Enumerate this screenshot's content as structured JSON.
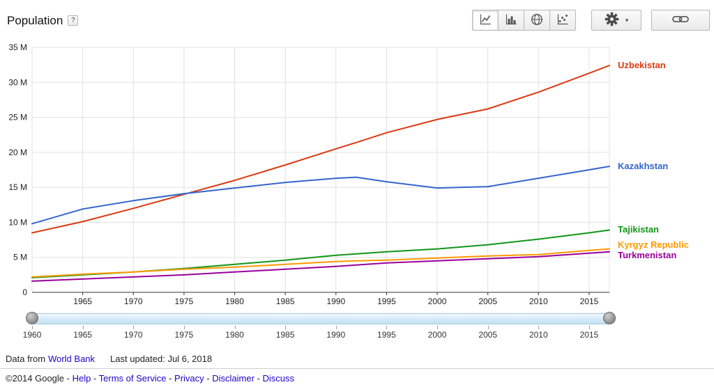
{
  "header": {
    "title": "Population",
    "help_label": "?",
    "toolbar": {
      "chart_types": [
        {
          "id": "line",
          "selected": true
        },
        {
          "id": "bar",
          "selected": false
        },
        {
          "id": "map",
          "selected": false
        },
        {
          "id": "scatter",
          "selected": false
        }
      ],
      "settings_caret": "▾"
    }
  },
  "chart_data": {
    "type": "line",
    "title": "Population",
    "x": [
      1960,
      1965,
      1970,
      1975,
      1980,
      1985,
      1990,
      1992,
      1995,
      2000,
      2005,
      2010,
      2015,
      2017
    ],
    "series": [
      {
        "name": "Uzbekistan",
        "color": "#dc3912",
        "values": [
          8.5,
          10.1,
          12.0,
          14.0,
          16.0,
          18.2,
          20.5,
          21.4,
          22.8,
          24.7,
          26.2,
          28.6,
          31.3,
          32.4
        ]
      },
      {
        "name": "Kazakhstan",
        "color": "#3366cc",
        "values": [
          9.8,
          11.9,
          13.1,
          14.1,
          14.9,
          15.7,
          16.3,
          16.45,
          15.8,
          14.9,
          15.1,
          16.3,
          17.5,
          18.0
        ]
      },
      {
        "name": "Tajikistan",
        "color": "#109618",
        "values": [
          2.1,
          2.5,
          2.9,
          3.4,
          4.0,
          4.6,
          5.3,
          5.5,
          5.8,
          6.2,
          6.8,
          7.6,
          8.5,
          8.9
        ]
      },
      {
        "name": "Kyrgyz Republic",
        "color": "#ff9900",
        "values": [
          2.2,
          2.6,
          2.9,
          3.3,
          3.6,
          4.0,
          4.4,
          4.5,
          4.6,
          4.9,
          5.2,
          5.4,
          6.0,
          6.2
        ]
      },
      {
        "name": "Turkmenistan",
        "color": "#990099",
        "values": [
          1.6,
          1.9,
          2.2,
          2.5,
          2.9,
          3.3,
          3.7,
          3.9,
          4.2,
          4.5,
          4.8,
          5.1,
          5.6,
          5.8
        ]
      }
    ],
    "xlim": [
      1960,
      2017
    ],
    "ylim": [
      0,
      35
    ],
    "y_ticks": [
      0,
      5,
      10,
      15,
      20,
      25,
      30,
      35
    ],
    "y_tick_labels": [
      "0",
      "5 M",
      "10 M",
      "15 M",
      "20 M",
      "25 M",
      "30 M",
      "35 M"
    ],
    "x_ticks": [
      1965,
      1970,
      1975,
      1980,
      1985,
      1990,
      1995,
      2000,
      2005,
      2010,
      2015
    ],
    "grid": true,
    "legend_position": "right"
  },
  "slider": {
    "ticks": [
      1960,
      1965,
      1970,
      1975,
      1980,
      1985,
      1990,
      1995,
      2000,
      2005,
      2010,
      2015
    ]
  },
  "source": {
    "prefix": "Data from",
    "link": "World Bank",
    "last_updated": "Last updated: Jul 6, 2018"
  },
  "footer": {
    "copyright": "©2014 Google",
    "separator": "-",
    "links": [
      "Help",
      "Terms of Service",
      "Privacy",
      "Disclaimer",
      "Discuss"
    ]
  },
  "colors": {
    "link": "#2200cc",
    "grid": "#e0e0e0",
    "axis": "#333333",
    "tick_text": "#222222"
  }
}
